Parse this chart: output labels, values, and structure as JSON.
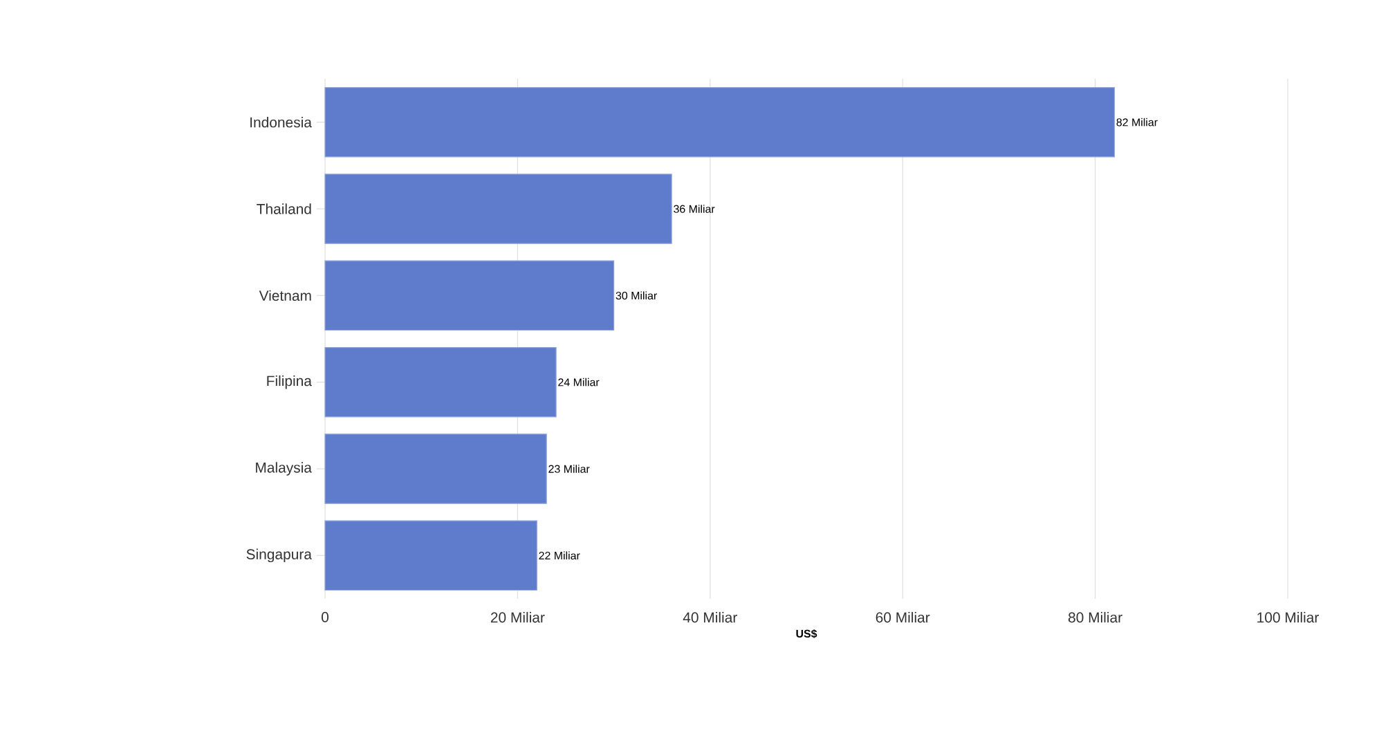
{
  "chart_data": {
    "type": "bar",
    "orientation": "horizontal",
    "xlabel": "US$",
    "categories": [
      "Indonesia",
      "Thailand",
      "Vietnam",
      "Filipina",
      "Malaysia",
      "Singapura"
    ],
    "values": [
      82,
      36,
      30,
      24,
      23,
      22
    ],
    "value_labels": [
      "82 Miliar",
      "36 Miliar",
      "30 Miliar",
      "24 Miliar",
      "23 Miliar",
      "22 Miliar"
    ],
    "color": "#5f7bcb",
    "xlim": [
      0,
      100
    ],
    "xticks": [
      {
        "value": 0,
        "label": "0"
      },
      {
        "value": 20,
        "label": "20 Miliar"
      },
      {
        "value": 40,
        "label": "40 Miliar"
      },
      {
        "value": 60,
        "label": "60 Miliar"
      },
      {
        "value": 80,
        "label": "80 Miliar"
      },
      {
        "value": 100,
        "label": "100 Miliar"
      }
    ],
    "grid": "x"
  }
}
